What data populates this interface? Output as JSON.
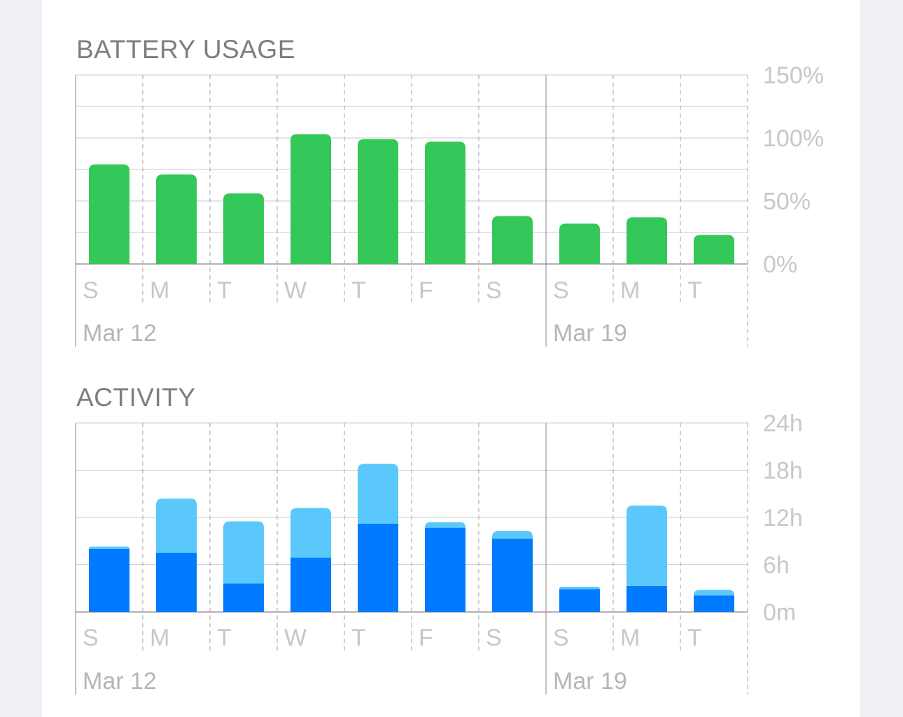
{
  "sections": {
    "battery_title": "BATTERY USAGE",
    "activity_title": "ACTIVITY"
  },
  "colors": {
    "battery_bar": "#34c759",
    "activity_screen_on": "#007aff",
    "activity_screen_off": "#5ac8fa",
    "grid": "#c8c8cc",
    "axis_text": "#c7c7cc"
  },
  "chart_data": [
    {
      "type": "bar",
      "title": "BATTERY USAGE",
      "categories": [
        "S",
        "M",
        "T",
        "W",
        "T",
        "F",
        "S",
        "S",
        "M",
        "T"
      ],
      "date_labels": [
        {
          "label": "Mar 12",
          "category_index": 0
        },
        {
          "label": "Mar 19",
          "category_index": 7
        }
      ],
      "values": [
        79,
        71,
        56,
        103,
        99,
        97,
        38,
        32,
        37,
        23
      ],
      "y_ticks": [
        "150%",
        "100%",
        "50%",
        "0%"
      ],
      "ylim": [
        0,
        150
      ],
      "grid": true
    },
    {
      "type": "bar",
      "stacked": true,
      "title": "ACTIVITY",
      "categories": [
        "S",
        "M",
        "T",
        "W",
        "T",
        "F",
        "S",
        "S",
        "M",
        "T"
      ],
      "date_labels": [
        {
          "label": "Mar 12",
          "category_index": 0
        },
        {
          "label": "Mar 19",
          "category_index": 7
        }
      ],
      "series": [
        {
          "values": [
            8.0,
            7.5,
            3.6,
            6.9,
            11.2,
            10.7,
            9.3,
            2.9,
            3.3,
            2.1
          ]
        },
        {
          "values": [
            0.3,
            6.9,
            7.9,
            6.3,
            7.6,
            0.7,
            1.0,
            0.3,
            10.2,
            0.7
          ]
        }
      ],
      "y_ticks": [
        "24h",
        "18h",
        "12h",
        "6h",
        "0m"
      ],
      "ylim": [
        0,
        24
      ],
      "grid": true
    }
  ]
}
